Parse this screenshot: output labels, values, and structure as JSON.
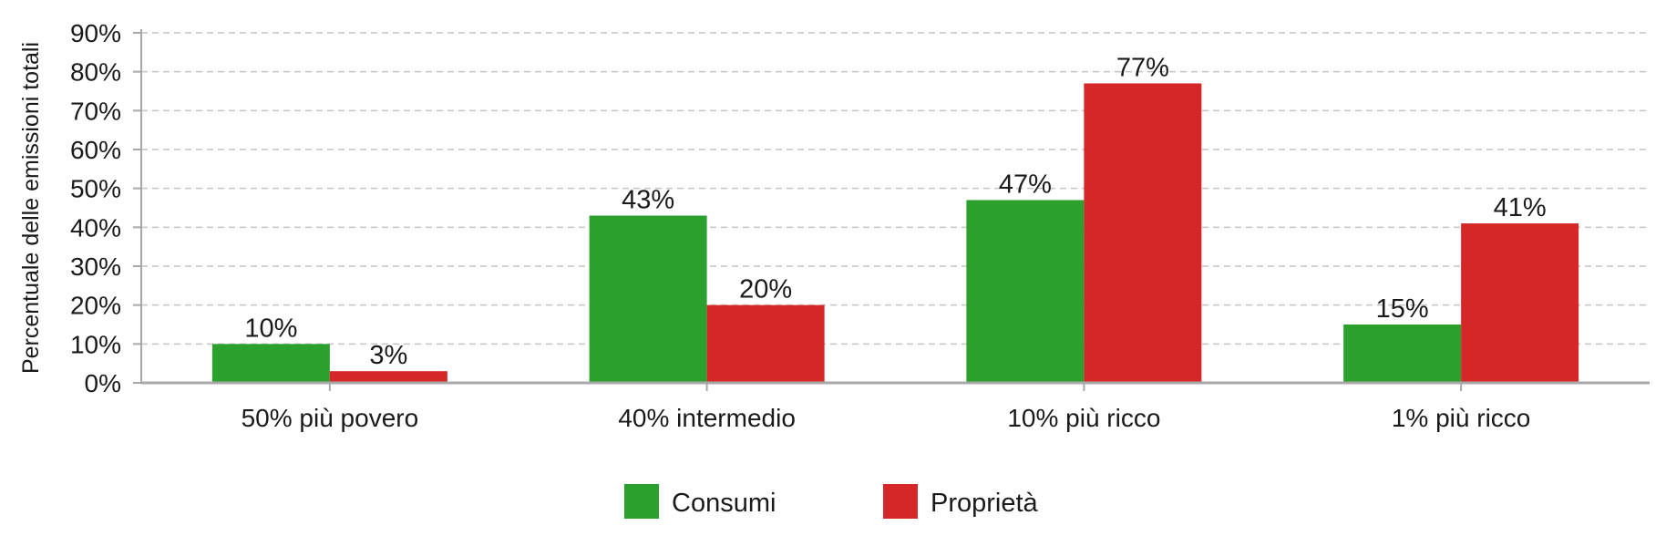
{
  "chart_data": {
    "type": "bar",
    "title": "",
    "xlabel": "",
    "ylabel": "Percentuale delle emissioni totali",
    "categories": [
      "50% più povero",
      "40% intermedio",
      "10% più ricco",
      "1% più ricco"
    ],
    "series": [
      {
        "name": "Consumi",
        "color": "#2ca02c",
        "values": [
          10,
          43,
          47,
          15
        ],
        "labels": [
          "10%",
          "43%",
          "47%",
          "15%"
        ]
      },
      {
        "name": "Proprietà",
        "color": "#d62728",
        "values": [
          3,
          20,
          77,
          41
        ],
        "labels": [
          "3%",
          "20%",
          "77%",
          "41%"
        ]
      }
    ],
    "ylim": [
      0,
      90
    ],
    "yticks": [
      0,
      10,
      20,
      30,
      40,
      50,
      60,
      70,
      80,
      90
    ],
    "ytick_labels": [
      "0%",
      "10%",
      "20%",
      "30%",
      "40%",
      "50%",
      "60%",
      "70%",
      "80%",
      "90%"
    ],
    "grid": true,
    "grid_style": "dashed",
    "legend_position": "bottom"
  }
}
